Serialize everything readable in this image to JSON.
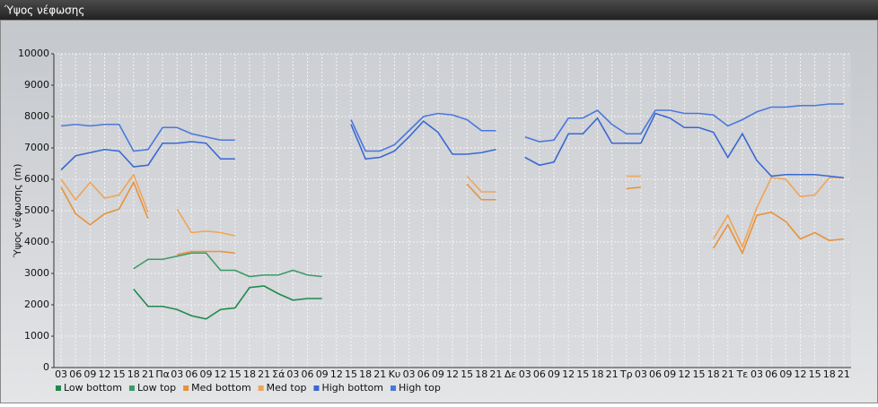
{
  "window_title": "Ύψος νέφωσης",
  "chart_data": {
    "type": "line",
    "y_label": "Ύψος νέφωσης (m)",
    "categories": [
      "03",
      "06",
      "09",
      "12",
      "15",
      "18",
      "21",
      "Πα",
      "03",
      "06",
      "09",
      "12",
      "15",
      "18",
      "21",
      "Σά",
      "03",
      "06",
      "09",
      "12",
      "15",
      "18",
      "21",
      "Κυ",
      "03",
      "06",
      "09",
      "12",
      "15",
      "18",
      "21",
      "Δε",
      "03",
      "06",
      "09",
      "12",
      "15",
      "18",
      "21",
      "Τρ",
      "03",
      "06",
      "09",
      "12",
      "15",
      "18",
      "21",
      "Τε",
      "03",
      "06",
      "09",
      "12",
      "15",
      "18",
      "21"
    ],
    "ylim": [
      0,
      10000
    ],
    "yticks": [
      0,
      1000,
      2000,
      3000,
      4000,
      5000,
      6000,
      7000,
      8000,
      9000,
      10000
    ],
    "grid": true,
    "legend": "bottom-left",
    "series": [
      {
        "name": "Low bottom",
        "color": "#1f8a4c",
        "values": [
          null,
          null,
          null,
          null,
          null,
          2500,
          1950,
          1950,
          1850,
          1650,
          1550,
          1850,
          1900,
          2550,
          2600,
          2350,
          2150,
          2200,
          2200,
          null,
          null,
          null,
          null,
          null,
          null,
          null,
          null,
          null,
          null,
          null,
          null,
          null,
          null,
          null,
          null,
          null,
          null,
          null,
          null,
          null,
          null,
          null,
          null,
          null,
          null,
          null,
          null,
          null,
          null,
          null,
          null,
          null,
          null,
          null,
          null
        ]
      },
      {
        "name": "Low top",
        "color": "#3c9a66",
        "values": [
          null,
          null,
          null,
          null,
          null,
          3150,
          3450,
          3450,
          3550,
          3650,
          3650,
          3100,
          3100,
          2900,
          2950,
          2950,
          3100,
          2950,
          2900,
          null,
          null,
          null,
          null,
          null,
          null,
          null,
          null,
          null,
          null,
          null,
          null,
          null,
          null,
          null,
          null,
          null,
          null,
          null,
          null,
          null,
          null,
          null,
          null,
          null,
          null,
          null,
          null,
          null,
          null,
          null,
          null,
          null,
          null,
          null,
          null
        ]
      },
      {
        "name": "Med bottom",
        "color": "#e8923a",
        "values": [
          5750,
          4900,
          4550,
          4900,
          5050,
          5900,
          4750,
          null,
          3600,
          3700,
          3700,
          3700,
          3650,
          null,
          null,
          null,
          null,
          null,
          null,
          null,
          null,
          null,
          null,
          null,
          null,
          null,
          null,
          null,
          5850,
          5350,
          5350,
          null,
          null,
          null,
          null,
          null,
          null,
          null,
          null,
          5700,
          5750,
          null,
          null,
          null,
          null,
          3800,
          4550,
          3650,
          4850,
          4950,
          4650,
          4100,
          4300,
          4050,
          4100
        ]
      },
      {
        "name": "Med top",
        "color": "#f0a458",
        "values": [
          6000,
          5350,
          5900,
          5400,
          5500,
          6150,
          4950,
          null,
          5050,
          4300,
          4350,
          4300,
          4200,
          null,
          null,
          null,
          null,
          null,
          null,
          null,
          null,
          null,
          null,
          null,
          null,
          null,
          null,
          null,
          6100,
          5600,
          5600,
          null,
          null,
          null,
          null,
          null,
          null,
          null,
          null,
          6100,
          6100,
          null,
          null,
          null,
          null,
          4100,
          4850,
          3850,
          5100,
          6050,
          6000,
          5450,
          5500,
          6050,
          6050
        ]
      },
      {
        "name": "High bottom",
        "color": "#3a68d0",
        "values": [
          6300,
          6750,
          6850,
          6950,
          6900,
          6400,
          6450,
          7150,
          7150,
          7200,
          7150,
          6650,
          6650,
          null,
          null,
          null,
          null,
          null,
          null,
          null,
          7750,
          6650,
          6700,
          6900,
          7350,
          7850,
          7500,
          6800,
          6800,
          6850,
          6950,
          null,
          6700,
          6450,
          6550,
          7450,
          7450,
          7950,
          7150,
          7150,
          7150,
          8100,
          7950,
          7650,
          7650,
          7500,
          6700,
          7450,
          6600,
          6100,
          6150,
          6150,
          6150,
          6100,
          6050
        ]
      },
      {
        "name": "High top",
        "color": "#4a78dc",
        "values": [
          7700,
          7750,
          7700,
          7750,
          7750,
          6900,
          6950,
          7650,
          7650,
          7450,
          7350,
          7250,
          7250,
          null,
          null,
          null,
          null,
          null,
          null,
          null,
          7900,
          6900,
          6900,
          7100,
          7550,
          8000,
          8100,
          8050,
          7900,
          7550,
          7550,
          null,
          7350,
          7200,
          7250,
          7950,
          7950,
          8200,
          7750,
          7450,
          7450,
          8200,
          8200,
          8100,
          8100,
          8050,
          7700,
          7900,
          8150,
          8300,
          8300,
          8350,
          8350,
          8400,
          8400
        ]
      }
    ]
  }
}
